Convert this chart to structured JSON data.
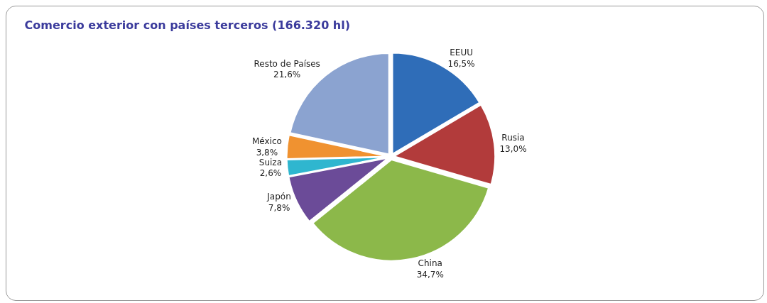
{
  "chart_data": {
    "type": "pie",
    "title": "Comercio exterior con países terceros (166.320 hl)",
    "categories": [
      "EEUU",
      "Rusia",
      "China",
      "Japón",
      "Suiza",
      "México",
      "Resto de Países"
    ],
    "values": [
      16.5,
      13.0,
      34.7,
      7.8,
      2.6,
      3.8,
      21.6
    ],
    "value_labels": [
      "16,5%",
      "13,0%",
      "34,7%",
      "7,8%",
      "2,6%",
      "3,8%",
      "21,6%"
    ],
    "colors": [
      "#2f6db8",
      "#b23b3b",
      "#8cb84a",
      "#6b4b98",
      "#2fb6cf",
      "#f09230",
      "#8ba3d0"
    ],
    "legend": false
  }
}
